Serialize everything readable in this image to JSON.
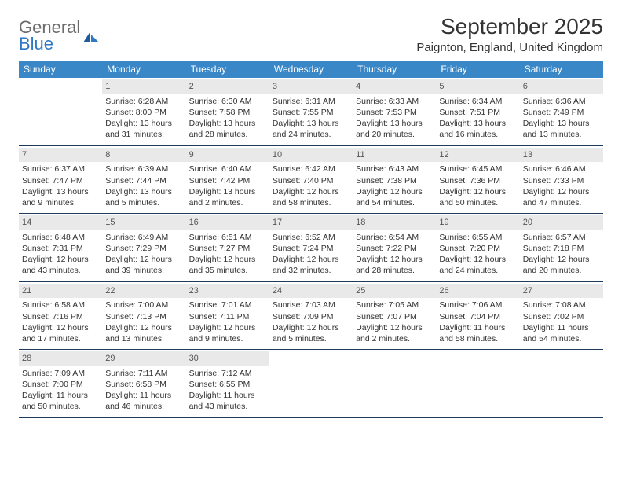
{
  "brand": {
    "word1": "General",
    "word2": "Blue"
  },
  "title": "September 2025",
  "location": "Paignton, England, United Kingdom",
  "colors": {
    "header_bg": "#3a87c8",
    "header_text": "#ffffff",
    "daynum_bg": "#e9e9e9",
    "rule": "#1f3b5a",
    "brand_blue": "#2f78c4",
    "brand_gray": "#6b6b6b"
  },
  "dayNames": [
    "Sunday",
    "Monday",
    "Tuesday",
    "Wednesday",
    "Thursday",
    "Friday",
    "Saturday"
  ],
  "weeks": [
    [
      {
        "n": "",
        "sr": "",
        "ss": "",
        "dl": ""
      },
      {
        "n": "1",
        "sr": "Sunrise: 6:28 AM",
        "ss": "Sunset: 8:00 PM",
        "dl": "Daylight: 13 hours and 31 minutes."
      },
      {
        "n": "2",
        "sr": "Sunrise: 6:30 AM",
        "ss": "Sunset: 7:58 PM",
        "dl": "Daylight: 13 hours and 28 minutes."
      },
      {
        "n": "3",
        "sr": "Sunrise: 6:31 AM",
        "ss": "Sunset: 7:55 PM",
        "dl": "Daylight: 13 hours and 24 minutes."
      },
      {
        "n": "4",
        "sr": "Sunrise: 6:33 AM",
        "ss": "Sunset: 7:53 PM",
        "dl": "Daylight: 13 hours and 20 minutes."
      },
      {
        "n": "5",
        "sr": "Sunrise: 6:34 AM",
        "ss": "Sunset: 7:51 PM",
        "dl": "Daylight: 13 hours and 16 minutes."
      },
      {
        "n": "6",
        "sr": "Sunrise: 6:36 AM",
        "ss": "Sunset: 7:49 PM",
        "dl": "Daylight: 13 hours and 13 minutes."
      }
    ],
    [
      {
        "n": "7",
        "sr": "Sunrise: 6:37 AM",
        "ss": "Sunset: 7:47 PM",
        "dl": "Daylight: 13 hours and 9 minutes."
      },
      {
        "n": "8",
        "sr": "Sunrise: 6:39 AM",
        "ss": "Sunset: 7:44 PM",
        "dl": "Daylight: 13 hours and 5 minutes."
      },
      {
        "n": "9",
        "sr": "Sunrise: 6:40 AM",
        "ss": "Sunset: 7:42 PM",
        "dl": "Daylight: 13 hours and 2 minutes."
      },
      {
        "n": "10",
        "sr": "Sunrise: 6:42 AM",
        "ss": "Sunset: 7:40 PM",
        "dl": "Daylight: 12 hours and 58 minutes."
      },
      {
        "n": "11",
        "sr": "Sunrise: 6:43 AM",
        "ss": "Sunset: 7:38 PM",
        "dl": "Daylight: 12 hours and 54 minutes."
      },
      {
        "n": "12",
        "sr": "Sunrise: 6:45 AM",
        "ss": "Sunset: 7:36 PM",
        "dl": "Daylight: 12 hours and 50 minutes."
      },
      {
        "n": "13",
        "sr": "Sunrise: 6:46 AM",
        "ss": "Sunset: 7:33 PM",
        "dl": "Daylight: 12 hours and 47 minutes."
      }
    ],
    [
      {
        "n": "14",
        "sr": "Sunrise: 6:48 AM",
        "ss": "Sunset: 7:31 PM",
        "dl": "Daylight: 12 hours and 43 minutes."
      },
      {
        "n": "15",
        "sr": "Sunrise: 6:49 AM",
        "ss": "Sunset: 7:29 PM",
        "dl": "Daylight: 12 hours and 39 minutes."
      },
      {
        "n": "16",
        "sr": "Sunrise: 6:51 AM",
        "ss": "Sunset: 7:27 PM",
        "dl": "Daylight: 12 hours and 35 minutes."
      },
      {
        "n": "17",
        "sr": "Sunrise: 6:52 AM",
        "ss": "Sunset: 7:24 PM",
        "dl": "Daylight: 12 hours and 32 minutes."
      },
      {
        "n": "18",
        "sr": "Sunrise: 6:54 AM",
        "ss": "Sunset: 7:22 PM",
        "dl": "Daylight: 12 hours and 28 minutes."
      },
      {
        "n": "19",
        "sr": "Sunrise: 6:55 AM",
        "ss": "Sunset: 7:20 PM",
        "dl": "Daylight: 12 hours and 24 minutes."
      },
      {
        "n": "20",
        "sr": "Sunrise: 6:57 AM",
        "ss": "Sunset: 7:18 PM",
        "dl": "Daylight: 12 hours and 20 minutes."
      }
    ],
    [
      {
        "n": "21",
        "sr": "Sunrise: 6:58 AM",
        "ss": "Sunset: 7:16 PM",
        "dl": "Daylight: 12 hours and 17 minutes."
      },
      {
        "n": "22",
        "sr": "Sunrise: 7:00 AM",
        "ss": "Sunset: 7:13 PM",
        "dl": "Daylight: 12 hours and 13 minutes."
      },
      {
        "n": "23",
        "sr": "Sunrise: 7:01 AM",
        "ss": "Sunset: 7:11 PM",
        "dl": "Daylight: 12 hours and 9 minutes."
      },
      {
        "n": "24",
        "sr": "Sunrise: 7:03 AM",
        "ss": "Sunset: 7:09 PM",
        "dl": "Daylight: 12 hours and 5 minutes."
      },
      {
        "n": "25",
        "sr": "Sunrise: 7:05 AM",
        "ss": "Sunset: 7:07 PM",
        "dl": "Daylight: 12 hours and 2 minutes."
      },
      {
        "n": "26",
        "sr": "Sunrise: 7:06 AM",
        "ss": "Sunset: 7:04 PM",
        "dl": "Daylight: 11 hours and 58 minutes."
      },
      {
        "n": "27",
        "sr": "Sunrise: 7:08 AM",
        "ss": "Sunset: 7:02 PM",
        "dl": "Daylight: 11 hours and 54 minutes."
      }
    ],
    [
      {
        "n": "28",
        "sr": "Sunrise: 7:09 AM",
        "ss": "Sunset: 7:00 PM",
        "dl": "Daylight: 11 hours and 50 minutes."
      },
      {
        "n": "29",
        "sr": "Sunrise: 7:11 AM",
        "ss": "Sunset: 6:58 PM",
        "dl": "Daylight: 11 hours and 46 minutes."
      },
      {
        "n": "30",
        "sr": "Sunrise: 7:12 AM",
        "ss": "Sunset: 6:55 PM",
        "dl": "Daylight: 11 hours and 43 minutes."
      },
      {
        "n": "",
        "sr": "",
        "ss": "",
        "dl": ""
      },
      {
        "n": "",
        "sr": "",
        "ss": "",
        "dl": ""
      },
      {
        "n": "",
        "sr": "",
        "ss": "",
        "dl": ""
      },
      {
        "n": "",
        "sr": "",
        "ss": "",
        "dl": ""
      }
    ]
  ]
}
